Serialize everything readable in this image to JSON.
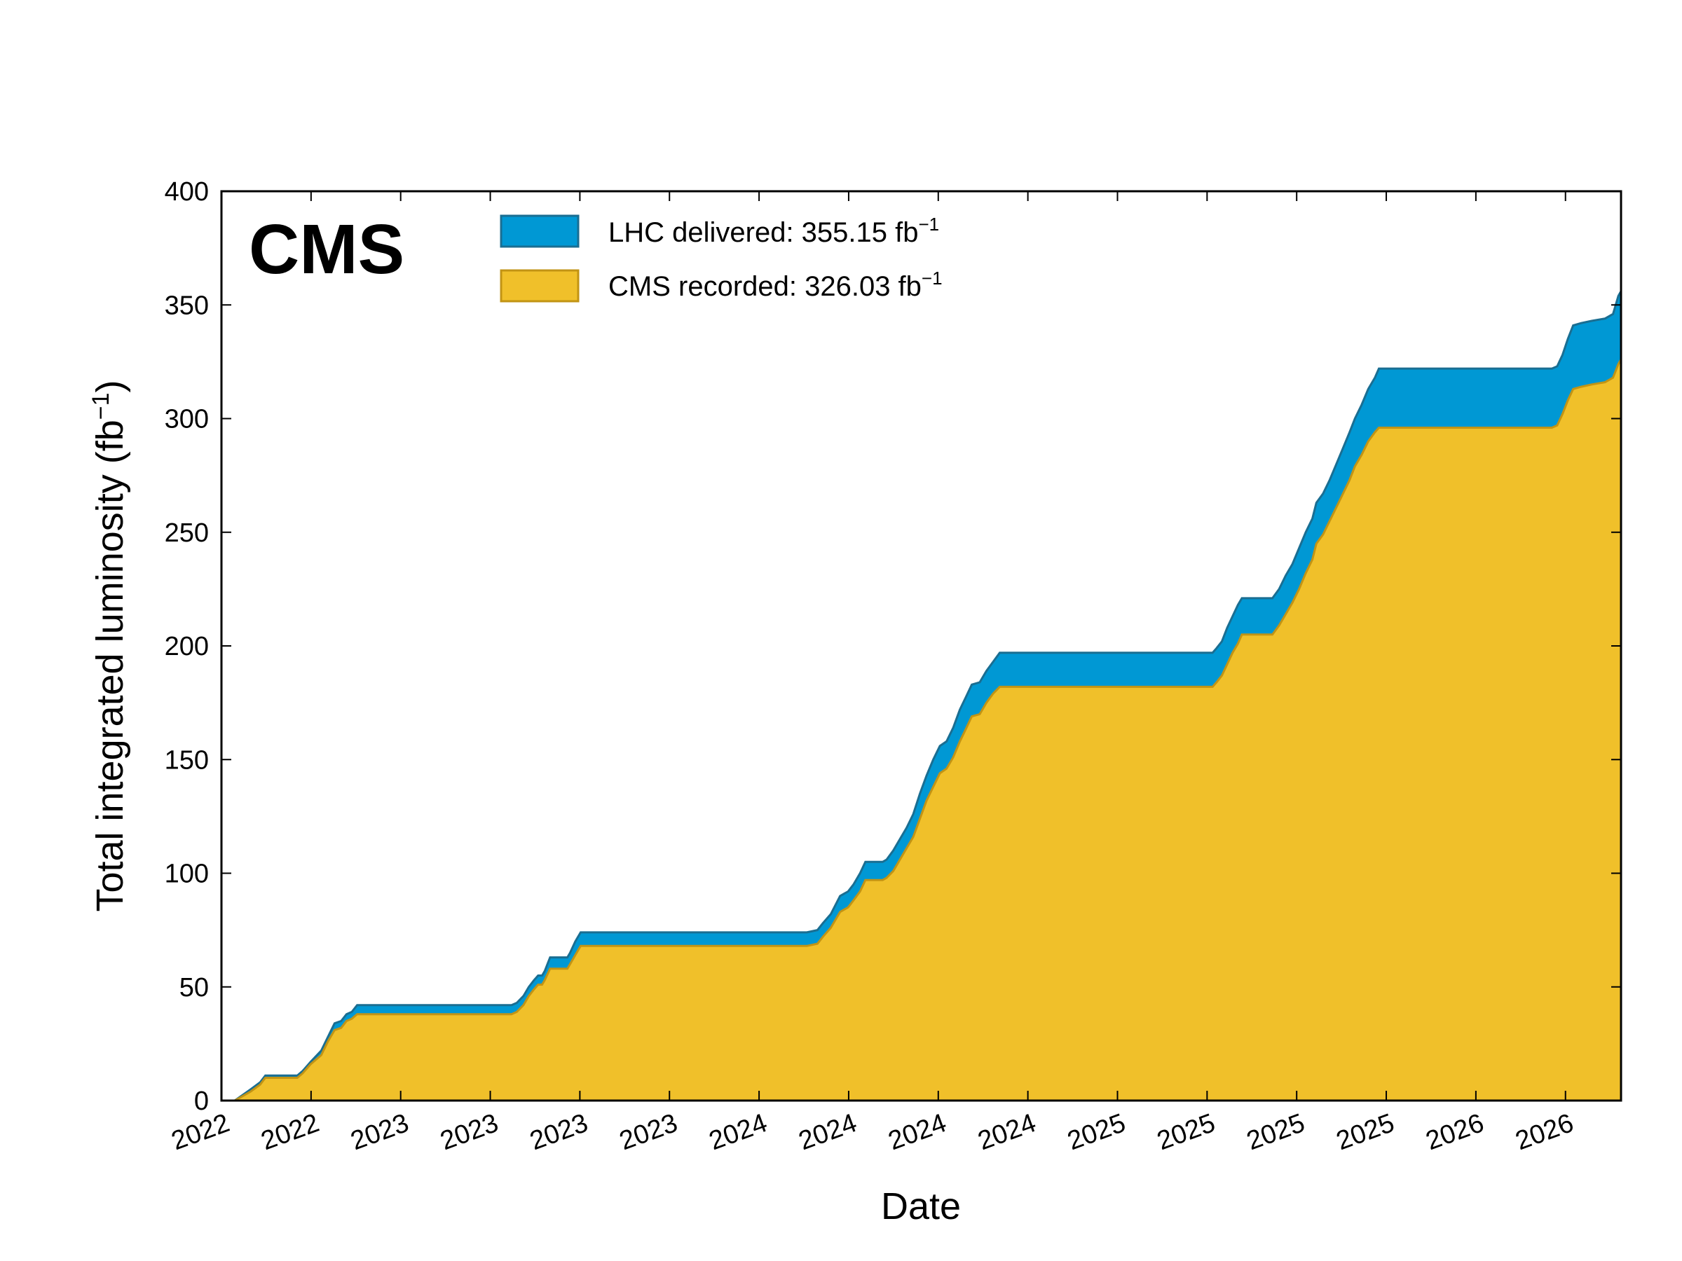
{
  "chart_data": {
    "type": "area",
    "brand_label": "CMS",
    "xlabel": "Date",
    "ylabel": "Total integrated luminosity (fb",
    "ylabel_sup": "−1",
    "ylabel_close": ")",
    "ylim": [
      0,
      400
    ],
    "y_ticks": [
      0,
      50,
      100,
      150,
      200,
      250,
      300,
      350,
      400
    ],
    "x_tick_labels": [
      "2022",
      "2022",
      "2023",
      "2023",
      "2023",
      "2023",
      "2024",
      "2024",
      "2024",
      "2024",
      "2025",
      "2025",
      "2025",
      "2025",
      "2026",
      "2026"
    ],
    "legend_placement": "top",
    "grid": false,
    "series": [
      {
        "name": "LHC delivered: 355.15 fb",
        "name_sup": "−1",
        "key": "delivered",
        "color": "#0098d4",
        "edge_color": "#1a6e92",
        "points": [
          [
            0,
            0
          ],
          [
            10,
            0
          ],
          [
            22,
            5
          ],
          [
            29,
            8
          ],
          [
            33,
            11
          ],
          [
            40,
            11
          ],
          [
            50,
            11
          ],
          [
            57,
            11
          ],
          [
            61,
            13
          ],
          [
            67,
            17
          ],
          [
            75,
            22
          ],
          [
            80,
            28
          ],
          [
            85,
            34
          ],
          [
            90,
            35
          ],
          [
            94,
            38
          ],
          [
            98,
            39
          ],
          [
            102,
            42
          ],
          [
            130,
            42
          ],
          [
            160,
            42
          ],
          [
            186,
            42
          ],
          [
            200,
            42
          ],
          [
            218,
            42
          ],
          [
            222,
            43
          ],
          [
            227,
            46
          ],
          [
            231,
            50
          ],
          [
            235,
            53
          ],
          [
            238,
            55
          ],
          [
            241,
            55
          ],
          [
            243,
            57
          ],
          [
            247,
            63
          ],
          [
            260,
            63
          ],
          [
            262,
            65
          ],
          [
            266,
            70
          ],
          [
            270,
            74
          ],
          [
            290,
            74
          ],
          [
            330,
            74
          ],
          [
            380,
            74
          ],
          [
            420,
            74
          ],
          [
            440,
            74
          ],
          [
            448,
            75
          ],
          [
            452,
            78
          ],
          [
            458,
            82
          ],
          [
            465,
            90
          ],
          [
            468,
            91
          ],
          [
            471,
            92
          ],
          [
            475,
            95
          ],
          [
            480,
            100
          ],
          [
            484,
            105
          ],
          [
            497,
            105
          ],
          [
            500,
            106
          ],
          [
            505,
            110
          ],
          [
            510,
            115
          ],
          [
            515,
            120
          ],
          [
            520,
            126
          ],
          [
            525,
            135
          ],
          [
            530,
            143
          ],
          [
            535,
            150
          ],
          [
            540,
            156
          ],
          [
            545,
            158
          ],
          [
            550,
            164
          ],
          [
            555,
            172
          ],
          [
            560,
            178
          ],
          [
            564,
            183
          ],
          [
            570,
            184
          ],
          [
            575,
            189
          ],
          [
            580,
            193
          ],
          [
            585,
            197
          ],
          [
            600,
            197
          ],
          [
            650,
            197
          ],
          [
            700,
            197
          ],
          [
            735,
            197
          ],
          [
            745,
            197
          ],
          [
            748,
            199
          ],
          [
            752,
            202
          ],
          [
            756,
            208
          ],
          [
            760,
            213
          ],
          [
            764,
            218
          ],
          [
            767,
            221
          ],
          [
            790,
            221
          ],
          [
            795,
            225
          ],
          [
            800,
            231
          ],
          [
            805,
            236
          ],
          [
            810,
            243
          ],
          [
            815,
            250
          ],
          [
            820,
            256
          ],
          [
            823,
            263
          ],
          [
            828,
            267
          ],
          [
            833,
            273
          ],
          [
            838,
            280
          ],
          [
            843,
            287
          ],
          [
            848,
            294
          ],
          [
            852,
            300
          ],
          [
            857,
            306
          ],
          [
            862,
            313
          ],
          [
            867,
            318
          ],
          [
            870,
            322
          ],
          [
            900,
            322
          ],
          [
            950,
            322
          ],
          [
            990,
            322
          ],
          [
            1000,
            322
          ],
          [
            1004,
            323
          ],
          [
            1008,
            328
          ],
          [
            1012,
            335
          ],
          [
            1016,
            341
          ],
          [
            1022,
            342
          ],
          [
            1030,
            343
          ],
          [
            1040,
            344
          ],
          [
            1046,
            346
          ],
          [
            1050,
            354
          ],
          [
            1052,
            356
          ]
        ]
      },
      {
        "name": "CMS recorded: 326.03 fb",
        "name_sup": "−1",
        "key": "recorded",
        "color": "#f0c02a",
        "edge_color": "#c29414",
        "points": [
          [
            0,
            0
          ],
          [
            10,
            0
          ],
          [
            22,
            4
          ],
          [
            29,
            7
          ],
          [
            33,
            10
          ],
          [
            40,
            10
          ],
          [
            50,
            10
          ],
          [
            57,
            10
          ],
          [
            61,
            12
          ],
          [
            67,
            16
          ],
          [
            75,
            20
          ],
          [
            80,
            26
          ],
          [
            85,
            31
          ],
          [
            90,
            32
          ],
          [
            94,
            35
          ],
          [
            98,
            36
          ],
          [
            102,
            38
          ],
          [
            130,
            38
          ],
          [
            160,
            38
          ],
          [
            186,
            38
          ],
          [
            200,
            38
          ],
          [
            218,
            38
          ],
          [
            222,
            39
          ],
          [
            227,
            42
          ],
          [
            231,
            46
          ],
          [
            235,
            49
          ],
          [
            238,
            51
          ],
          [
            241,
            51
          ],
          [
            243,
            53
          ],
          [
            247,
            58
          ],
          [
            260,
            58
          ],
          [
            262,
            60
          ],
          [
            266,
            64
          ],
          [
            270,
            68
          ],
          [
            290,
            68
          ],
          [
            330,
            68
          ],
          [
            380,
            68
          ],
          [
            420,
            68
          ],
          [
            440,
            68
          ],
          [
            448,
            69
          ],
          [
            452,
            72
          ],
          [
            458,
            76
          ],
          [
            465,
            83
          ],
          [
            468,
            84
          ],
          [
            471,
            85
          ],
          [
            475,
            88
          ],
          [
            480,
            92
          ],
          [
            484,
            97
          ],
          [
            497,
            97
          ],
          [
            500,
            98
          ],
          [
            505,
            101
          ],
          [
            510,
            106
          ],
          [
            515,
            111
          ],
          [
            520,
            116
          ],
          [
            525,
            124
          ],
          [
            530,
            132
          ],
          [
            535,
            138
          ],
          [
            540,
            144
          ],
          [
            545,
            146
          ],
          [
            550,
            151
          ],
          [
            555,
            158
          ],
          [
            560,
            164
          ],
          [
            564,
            169
          ],
          [
            570,
            170
          ],
          [
            575,
            175
          ],
          [
            580,
            179
          ],
          [
            585,
            182
          ],
          [
            600,
            182
          ],
          [
            650,
            182
          ],
          [
            700,
            182
          ],
          [
            735,
            182
          ],
          [
            745,
            182
          ],
          [
            748,
            184
          ],
          [
            752,
            187
          ],
          [
            756,
            192
          ],
          [
            760,
            197
          ],
          [
            764,
            201
          ],
          [
            767,
            205
          ],
          [
            790,
            205
          ],
          [
            795,
            209
          ],
          [
            800,
            214
          ],
          [
            805,
            219
          ],
          [
            810,
            225
          ],
          [
            815,
            232
          ],
          [
            820,
            238
          ],
          [
            823,
            245
          ],
          [
            828,
            249
          ],
          [
            833,
            255
          ],
          [
            838,
            261
          ],
          [
            843,
            267
          ],
          [
            848,
            273
          ],
          [
            852,
            279
          ],
          [
            857,
            284
          ],
          [
            862,
            290
          ],
          [
            867,
            294
          ],
          [
            870,
            296
          ],
          [
            900,
            296
          ],
          [
            950,
            296
          ],
          [
            990,
            296
          ],
          [
            1000,
            296
          ],
          [
            1004,
            297
          ],
          [
            1008,
            302
          ],
          [
            1012,
            308
          ],
          [
            1016,
            313
          ],
          [
            1022,
            314
          ],
          [
            1030,
            315
          ],
          [
            1040,
            316
          ],
          [
            1046,
            318
          ],
          [
            1050,
            324
          ],
          [
            1052,
            326
          ]
        ]
      }
    ]
  }
}
